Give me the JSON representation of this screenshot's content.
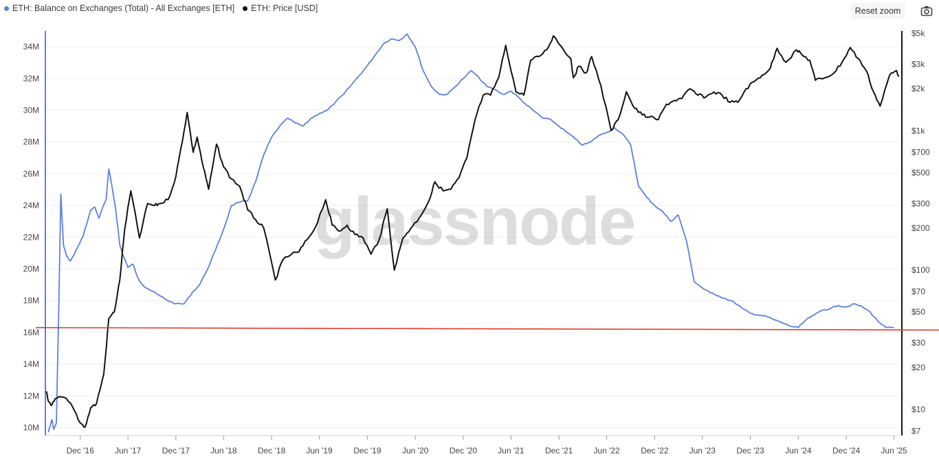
{
  "legend": [
    {
      "label": "ETH: Balance on Exchanges (Total) - All Exchanges [ETH]",
      "color": "#5b7fe0",
      "icon": "blue-dot-icon"
    },
    {
      "label": "ETH: Price [USD]",
      "color": "#111111",
      "icon": "black-dot-icon"
    }
  ],
  "toolbar": {
    "reset_zoom_label": "Reset zoom",
    "camera_icon": "camera-icon"
  },
  "watermark": "glassnode",
  "chart_data": {
    "type": "line",
    "x_ticks": [
      "Dec '16",
      "Jun '17",
      "Dec '17",
      "Jun '18",
      "Dec '18",
      "Jun '19",
      "Dec '19",
      "Jun '20",
      "Dec '20",
      "Jun '21",
      "Dec '21",
      "Jun '22",
      "Dec '22",
      "Jun '23",
      "Dec '23",
      "Jun '24",
      "Dec '24",
      "Jun '25"
    ],
    "x_range": [
      "2016-07",
      "2025-06"
    ],
    "y_left": {
      "ticks": [
        "10M",
        "12M",
        "14M",
        "16M",
        "18M",
        "20M",
        "22M",
        "24M",
        "26M",
        "28M",
        "30M",
        "32M",
        "34M"
      ],
      "ylim": [
        9.5,
        35
      ],
      "unit": "M ETH"
    },
    "y_right": {
      "scale": "log",
      "ticks": [
        "$7",
        "$10",
        "$20",
        "$30",
        "$50",
        "$70",
        "$100",
        "$200",
        "$300",
        "$500",
        "$700",
        "$1k",
        "$2k",
        "$3k",
        "$5k"
      ],
      "tick_values": [
        7,
        10,
        20,
        30,
        50,
        70,
        100,
        200,
        300,
        500,
        700,
        1000,
        2000,
        3000,
        5000
      ],
      "ylim": [
        6.5,
        5200
      ]
    },
    "reference_line": {
      "color": "#e03b2c",
      "y_start": 16.3,
      "y_end": 16.15
    },
    "series": [
      {
        "name": "ETH: Balance on Exchanges (Total) - All Exchanges [ETH]",
        "color": "#5b7fe0",
        "axis": "left",
        "points": [
          [
            "2016-08-01",
            9.7
          ],
          [
            "2016-08-15",
            10.5
          ],
          [
            "2016-08-22",
            9.9
          ],
          [
            "2016-09-01",
            10.3
          ],
          [
            "2016-09-10",
            17.5
          ],
          [
            "2016-09-18",
            24.7
          ],
          [
            "2016-09-28",
            21.5
          ],
          [
            "2016-10-10",
            20.8
          ],
          [
            "2016-10-25",
            20.5
          ],
          [
            "2016-11-10",
            21.0
          ],
          [
            "2016-11-25",
            21.5
          ],
          [
            "2016-12-10",
            22.0
          ],
          [
            "2016-12-25",
            22.8
          ],
          [
            "2017-01-10",
            23.7
          ],
          [
            "2017-01-25",
            23.9
          ],
          [
            "2017-02-10",
            23.2
          ],
          [
            "2017-02-25",
            23.9
          ],
          [
            "2017-03-10",
            24.4
          ],
          [
            "2017-03-20",
            26.3
          ],
          [
            "2017-04-01",
            25.2
          ],
          [
            "2017-04-15",
            23.8
          ],
          [
            "2017-05-01",
            21.5
          ],
          [
            "2017-05-15",
            20.8
          ],
          [
            "2017-06-01",
            20.1
          ],
          [
            "2017-06-20",
            20.3
          ],
          [
            "2017-07-10",
            19.4
          ],
          [
            "2017-08-01",
            18.9
          ],
          [
            "2017-09-01",
            18.6
          ],
          [
            "2017-10-01",
            18.3
          ],
          [
            "2017-11-01",
            18.0
          ],
          [
            "2017-12-01",
            17.8
          ],
          [
            "2018-01-01",
            17.8
          ],
          [
            "2018-02-01",
            18.5
          ],
          [
            "2018-03-01",
            19.0
          ],
          [
            "2018-04-01",
            20.0
          ],
          [
            "2018-05-01",
            21.2
          ],
          [
            "2018-06-01",
            22.5
          ],
          [
            "2018-07-01",
            24.0
          ],
          [
            "2018-08-01",
            24.2
          ],
          [
            "2018-09-01",
            24.3
          ],
          [
            "2018-10-01",
            25.5
          ],
          [
            "2018-11-01",
            27.2
          ],
          [
            "2018-12-01",
            28.3
          ],
          [
            "2019-01-01",
            29.0
          ],
          [
            "2019-02-01",
            29.5
          ],
          [
            "2019-03-01",
            29.2
          ],
          [
            "2019-04-01",
            29.0
          ],
          [
            "2019-05-01",
            29.5
          ],
          [
            "2019-06-01",
            29.8
          ],
          [
            "2019-07-01",
            30.0
          ],
          [
            "2019-08-01",
            30.5
          ],
          [
            "2019-09-01",
            31.0
          ],
          [
            "2019-10-01",
            31.6
          ],
          [
            "2019-11-01",
            32.2
          ],
          [
            "2019-12-01",
            32.8
          ],
          [
            "2020-01-01",
            33.5
          ],
          [
            "2020-02-01",
            34.2
          ],
          [
            "2020-03-01",
            34.5
          ],
          [
            "2020-04-01",
            34.4
          ],
          [
            "2020-05-01",
            34.8
          ],
          [
            "2020-06-01",
            34.0
          ],
          [
            "2020-07-01",
            32.5
          ],
          [
            "2020-08-01",
            31.5
          ],
          [
            "2020-09-01",
            31.0
          ],
          [
            "2020-10-01",
            31.0
          ],
          [
            "2020-11-01",
            31.5
          ],
          [
            "2020-12-01",
            32.0
          ],
          [
            "2021-01-01",
            32.5
          ],
          [
            "2021-02-01",
            32.0
          ],
          [
            "2021-03-01",
            31.5
          ],
          [
            "2021-04-01",
            31.3
          ],
          [
            "2021-05-01",
            31.0
          ],
          [
            "2021-06-01",
            31.2
          ],
          [
            "2021-07-01",
            30.8
          ],
          [
            "2021-08-01",
            30.3
          ],
          [
            "2021-09-01",
            29.9
          ],
          [
            "2021-10-01",
            29.5
          ],
          [
            "2021-11-01",
            29.4
          ],
          [
            "2021-12-01",
            29.0
          ],
          [
            "2022-01-01",
            28.6
          ],
          [
            "2022-02-01",
            28.2
          ],
          [
            "2022-03-01",
            27.8
          ],
          [
            "2022-04-01",
            28.0
          ],
          [
            "2022-05-01",
            28.4
          ],
          [
            "2022-06-01",
            28.6
          ],
          [
            "2022-07-01",
            28.9
          ],
          [
            "2022-08-01",
            28.5
          ],
          [
            "2022-09-01",
            27.8
          ],
          [
            "2022-10-01",
            25.2
          ],
          [
            "2022-11-01",
            24.5
          ],
          [
            "2022-12-01",
            24.0
          ],
          [
            "2023-01-01",
            23.6
          ],
          [
            "2023-02-01",
            23.0
          ],
          [
            "2023-03-01",
            23.4
          ],
          [
            "2023-04-01",
            21.8
          ],
          [
            "2023-05-01",
            19.2
          ],
          [
            "2023-06-01",
            18.8
          ],
          [
            "2023-07-01",
            18.5
          ],
          [
            "2023-08-01",
            18.3
          ],
          [
            "2023-09-01",
            18.1
          ],
          [
            "2023-10-01",
            17.9
          ],
          [
            "2023-11-01",
            17.5
          ],
          [
            "2023-12-01",
            17.2
          ],
          [
            "2024-01-01",
            17.1
          ],
          [
            "2024-02-01",
            17.0
          ],
          [
            "2024-03-01",
            16.8
          ],
          [
            "2024-04-01",
            16.6
          ],
          [
            "2024-05-01",
            16.4
          ],
          [
            "2024-06-01",
            16.3
          ],
          [
            "2024-07-01",
            16.8
          ],
          [
            "2024-08-01",
            17.1
          ],
          [
            "2024-09-01",
            17.4
          ],
          [
            "2024-10-01",
            17.5
          ],
          [
            "2024-11-01",
            17.7
          ],
          [
            "2024-12-01",
            17.6
          ],
          [
            "2025-01-01",
            17.8
          ],
          [
            "2025-02-01",
            17.6
          ],
          [
            "2025-03-01",
            17.3
          ],
          [
            "2025-04-01",
            16.7
          ],
          [
            "2025-05-01",
            16.3
          ],
          [
            "2025-06-01",
            16.3
          ]
        ]
      },
      {
        "name": "ETH: Price [USD]",
        "color": "#111111",
        "axis": "right",
        "points": [
          [
            "2016-07-24",
            13.5
          ],
          [
            "2016-08-01",
            11.5
          ],
          [
            "2016-08-15",
            10.8
          ],
          [
            "2016-09-01",
            12.0
          ],
          [
            "2016-10-01",
            12.2
          ],
          [
            "2016-11-01",
            10.5
          ],
          [
            "2016-12-01",
            8.0
          ],
          [
            "2016-12-20",
            7.5
          ],
          [
            "2017-01-10",
            10.3
          ],
          [
            "2017-02-01",
            11.0
          ],
          [
            "2017-03-01",
            18.0
          ],
          [
            "2017-03-20",
            45.0
          ],
          [
            "2017-04-10",
            50.0
          ],
          [
            "2017-05-01",
            85.0
          ],
          [
            "2017-05-20",
            200.0
          ],
          [
            "2017-06-12",
            370.0
          ],
          [
            "2017-07-15",
            170.0
          ],
          [
            "2017-08-15",
            300.0
          ],
          [
            "2017-09-10",
            290.0
          ],
          [
            "2017-10-01",
            300.0
          ],
          [
            "2017-11-01",
            320.0
          ],
          [
            "2017-12-01",
            470.0
          ],
          [
            "2017-12-20",
            750.0
          ],
          [
            "2018-01-13",
            1350.0
          ],
          [
            "2018-02-05",
            700.0
          ],
          [
            "2018-02-20",
            900.0
          ],
          [
            "2018-03-15",
            550.0
          ],
          [
            "2018-04-05",
            380.0
          ],
          [
            "2018-05-05",
            800.0
          ],
          [
            "2018-06-01",
            550.0
          ],
          [
            "2018-07-01",
            450.0
          ],
          [
            "2018-08-01",
            400.0
          ],
          [
            "2018-09-01",
            270.0
          ],
          [
            "2018-10-01",
            230.0
          ],
          [
            "2018-11-01",
            200.0
          ],
          [
            "2018-12-15",
            85.0
          ],
          [
            "2019-01-15",
            120.0
          ],
          [
            "2019-02-15",
            130.0
          ],
          [
            "2019-03-15",
            135.0
          ],
          [
            "2019-04-15",
            165.0
          ],
          [
            "2019-05-15",
            200.0
          ],
          [
            "2019-06-25",
            320.0
          ],
          [
            "2019-07-20",
            210.0
          ],
          [
            "2019-08-15",
            190.0
          ],
          [
            "2019-09-15",
            210.0
          ],
          [
            "2019-10-15",
            180.0
          ],
          [
            "2019-11-15",
            170.0
          ],
          [
            "2019-12-15",
            130.0
          ],
          [
            "2020-01-15",
            165.0
          ],
          [
            "2020-02-15",
            275.0
          ],
          [
            "2020-03-13",
            100.0
          ],
          [
            "2020-04-15",
            170.0
          ],
          [
            "2020-05-15",
            200.0
          ],
          [
            "2020-06-15",
            235.0
          ],
          [
            "2020-07-25",
            320.0
          ],
          [
            "2020-08-15",
            430.0
          ],
          [
            "2020-09-15",
            370.0
          ],
          [
            "2020-10-15",
            380.0
          ],
          [
            "2020-11-15",
            460.0
          ],
          [
            "2020-12-15",
            640.0
          ],
          [
            "2021-01-15",
            1200.0
          ],
          [
            "2021-02-15",
            1800.0
          ],
          [
            "2021-03-15",
            1800.0
          ],
          [
            "2021-04-15",
            2400.0
          ],
          [
            "2021-05-12",
            4100.0
          ],
          [
            "2021-06-20",
            1900.0
          ],
          [
            "2021-07-20",
            1800.0
          ],
          [
            "2021-08-15",
            3200.0
          ],
          [
            "2021-09-15",
            3400.0
          ],
          [
            "2021-10-15",
            3800.0
          ],
          [
            "2021-11-10",
            4800.0
          ],
          [
            "2021-12-15",
            3900.0
          ],
          [
            "2022-01-15",
            3300.0
          ],
          [
            "2022-01-25",
            2400.0
          ],
          [
            "2022-02-15",
            2900.0
          ],
          [
            "2022-03-15",
            2600.0
          ],
          [
            "2022-04-05",
            3400.0
          ],
          [
            "2022-05-10",
            2100.0
          ],
          [
            "2022-06-18",
            1000.0
          ],
          [
            "2022-07-15",
            1200.0
          ],
          [
            "2022-08-15",
            1900.0
          ],
          [
            "2022-09-15",
            1450.0
          ],
          [
            "2022-10-15",
            1300.0
          ],
          [
            "2022-11-10",
            1250.0
          ],
          [
            "2022-12-15",
            1200.0
          ],
          [
            "2023-01-15",
            1550.0
          ],
          [
            "2023-02-15",
            1650.0
          ],
          [
            "2023-03-15",
            1700.0
          ],
          [
            "2023-04-15",
            2000.0
          ],
          [
            "2023-05-15",
            1800.0
          ],
          [
            "2023-06-15",
            1750.0
          ],
          [
            "2023-07-15",
            1900.0
          ],
          [
            "2023-08-15",
            1800.0
          ],
          [
            "2023-09-15",
            1600.0
          ],
          [
            "2023-10-15",
            1600.0
          ],
          [
            "2023-11-15",
            2000.0
          ],
          [
            "2023-12-15",
            2250.0
          ],
          [
            "2024-01-15",
            2500.0
          ],
          [
            "2024-02-15",
            2800.0
          ],
          [
            "2024-03-12",
            3900.0
          ],
          [
            "2024-04-15",
            3100.0
          ],
          [
            "2024-05-25",
            3800.0
          ],
          [
            "2024-06-15",
            3500.0
          ],
          [
            "2024-07-15",
            3200.0
          ],
          [
            "2024-08-05",
            2300.0
          ],
          [
            "2024-09-10",
            2400.0
          ],
          [
            "2024-10-15",
            2600.0
          ],
          [
            "2024-11-15",
            3100.0
          ],
          [
            "2024-12-16",
            3950.0
          ],
          [
            "2025-01-15",
            3300.0
          ],
          [
            "2025-02-15",
            2700.0
          ],
          [
            "2025-03-15",
            1900.0
          ],
          [
            "2025-04-09",
            1500.0
          ],
          [
            "2025-05-15",
            2500.0
          ],
          [
            "2025-06-10",
            2700.0
          ],
          [
            "2025-06-20",
            2450.0
          ]
        ]
      }
    ]
  }
}
